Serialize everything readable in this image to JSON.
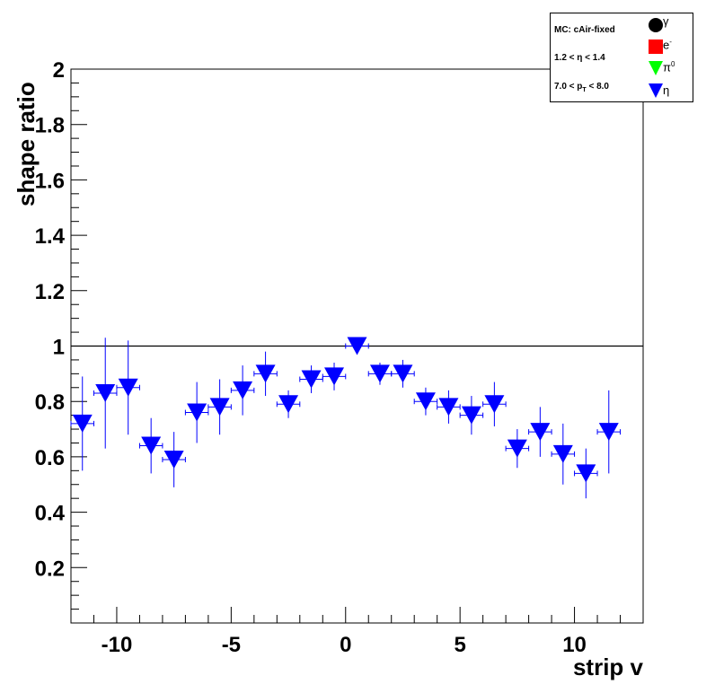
{
  "chart_data": {
    "type": "scatter",
    "xlabel": "strip v",
    "ylabel": "shape ratio",
    "xlim": [
      -12,
      13
    ],
    "ylim": [
      0,
      2
    ],
    "x_ticks": [
      "-10",
      "-5",
      "0",
      "5",
      "10"
    ],
    "y_ticks": [
      "0.2",
      "0.4",
      "0.6",
      "0.8",
      "1",
      "1.2",
      "1.4",
      "1.6",
      "1.8",
      "2"
    ],
    "reference_line_y": 1,
    "grid": false,
    "legend_position": "top-right",
    "legend_texts": [
      "MC: cAir-fixed",
      "1.2 < η < 1.4",
      "7.0 < p_T < 8.0"
    ],
    "series": [
      {
        "name": "η",
        "marker": "triangle-down",
        "color": "#0000ff",
        "x": [
          -11.5,
          -10.5,
          -9.5,
          -8.5,
          -7.5,
          -6.5,
          -5.5,
          -4.5,
          -3.5,
          -2.5,
          -1.5,
          -0.5,
          0.5,
          1.5,
          2.5,
          3.5,
          4.5,
          5.5,
          6.5,
          7.5,
          8.5,
          9.5,
          10.5,
          11.5
        ],
        "y": [
          0.72,
          0.83,
          0.85,
          0.64,
          0.59,
          0.76,
          0.78,
          0.84,
          0.9,
          0.79,
          0.88,
          0.89,
          1.0,
          0.9,
          0.9,
          0.8,
          0.78,
          0.75,
          0.79,
          0.63,
          0.69,
          0.61,
          0.54,
          0.69
        ],
        "err": [
          0.17,
          0.2,
          0.17,
          0.1,
          0.1,
          0.11,
          0.1,
          0.09,
          0.08,
          0.05,
          0.05,
          0.05,
          0.03,
          0.04,
          0.05,
          0.05,
          0.06,
          0.07,
          0.08,
          0.07,
          0.09,
          0.11,
          0.09,
          0.15
        ]
      }
    ]
  },
  "legend": {
    "title": "MC: cAir-fixed",
    "eta_range": "1.2 < η < 1.4",
    "pt_prefix": "7.0 < p",
    "pt_sub": "T",
    "pt_suffix": " < 8.0",
    "entries": [
      {
        "name": "γ",
        "symbol": "circle",
        "color": "#000000"
      },
      {
        "name": "e",
        "sup": "-",
        "symbol": "square",
        "color": "#ff0000"
      },
      {
        "name": "π",
        "sup": "0",
        "symbol": "triangle-down",
        "color": "#00ff00"
      },
      {
        "name": "η",
        "symbol": "triangle-down",
        "color": "#0000ff"
      }
    ]
  }
}
